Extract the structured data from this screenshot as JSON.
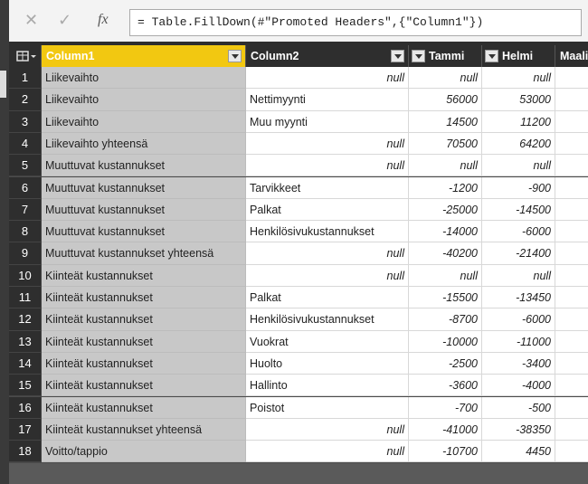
{
  "formula_bar": {
    "formula": "= Table.FillDown(#\"Promoted Headers\",{\"Column1\"})"
  },
  "table": {
    "headers": [
      "Column1",
      "Column2",
      "Tammi",
      "Helmi",
      "Maali"
    ],
    "rows": [
      [
        1,
        "Liikevaihto",
        "null",
        "null",
        "null"
      ],
      [
        2,
        "Liikevaihto",
        "Nettimyynti",
        56000,
        53000
      ],
      [
        3,
        "Liikevaihto",
        "Muu myynti",
        14500,
        11200
      ],
      [
        4,
        "Liikevaihto yhteensä",
        "null",
        70500,
        64200
      ],
      [
        5,
        "Muuttuvat kustannukset",
        "null",
        "null",
        "null"
      ],
      [
        6,
        "Muuttuvat kustannukset",
        "Tarvikkeet",
        -1200,
        -900
      ],
      [
        7,
        "Muuttuvat kustannukset",
        "Palkat",
        -25000,
        -14500
      ],
      [
        8,
        "Muuttuvat kustannukset",
        "Henkilösivukustannukset",
        -14000,
        -6000
      ],
      [
        9,
        "Muuttuvat kustannukset yhteensä",
        "null",
        -40200,
        -21400
      ],
      [
        10,
        "Kiinteät kustannukset",
        "null",
        "null",
        "null"
      ],
      [
        11,
        "Kiinteät kustannukset",
        "Palkat",
        -15500,
        -13450
      ],
      [
        12,
        "Kiinteät kustannukset",
        "Henkilösivukustannukset",
        -8700,
        -6000
      ],
      [
        13,
        "Kiinteät kustannukset",
        "Vuokrat",
        -10000,
        -11000
      ],
      [
        14,
        "Kiinteät kustannukset",
        "Huolto",
        -2500,
        -3400
      ],
      [
        15,
        "Kiinteät kustannukset",
        "Hallinto",
        -3600,
        -4000
      ],
      [
        16,
        "Kiinteät kustannukset",
        "Poistot",
        -700,
        -500
      ],
      [
        17,
        "Kiinteät kustannukset yhteensä",
        "null",
        -41000,
        -38350
      ],
      [
        18,
        "Voitto/tappio",
        "null",
        -10700,
        4450
      ]
    ]
  }
}
